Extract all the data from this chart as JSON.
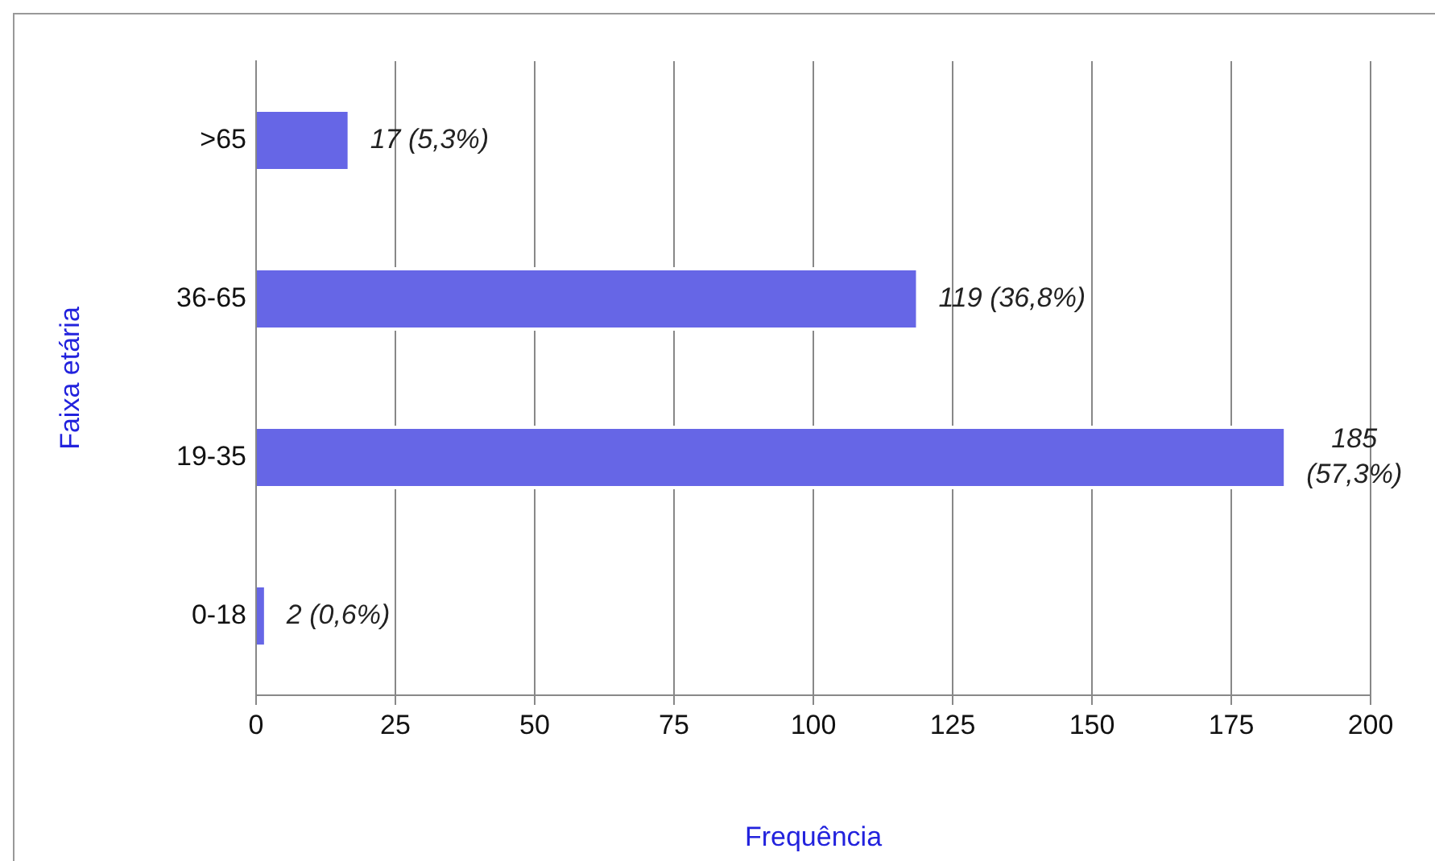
{
  "chart_data": {
    "type": "bar",
    "orientation": "horizontal",
    "categories": [
      ">65",
      "36-65",
      "19-35",
      "0-18"
    ],
    "values": [
      17,
      119,
      185,
      2
    ],
    "value_labels": [
      "17 (5,3%)",
      "119 (36,8%)",
      "185 (57,3%)",
      "2 (0,6%)"
    ],
    "color": "#6666e6",
    "xlim": [
      0,
      200
    ],
    "xticks": [
      0,
      25,
      50,
      75,
      100,
      125,
      150,
      175,
      200
    ],
    "xlabel": "Frequência",
    "ylabel": "Faixa etária",
    "grid": "x",
    "legend": false
  }
}
